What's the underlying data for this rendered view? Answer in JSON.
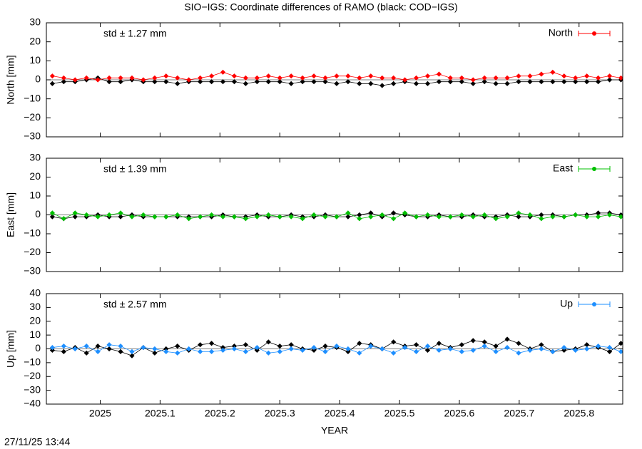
{
  "title": "SIO−IGS: Coordinate differences of RAMO (black: COD−IGS)",
  "timestamp": "27/11/25 13:44",
  "chart_data": [
    {
      "type": "line",
      "ylabel": "North [mm]",
      "annotation": "std ± 1.27 mm",
      "annotation_color": "#ff0000",
      "legend": "upper right",
      "xlim": [
        2024.91,
        2025.873
      ],
      "xticks": [
        2025,
        2025.1,
        2025.2,
        2025.3,
        2025.4,
        2025.5,
        2025.6,
        2025.7,
        2025.8
      ],
      "ylim": [
        -30,
        30
      ],
      "yticks": [
        {
          "value": -30,
          "label": "−30"
        },
        {
          "value": -20,
          "label": "−20"
        },
        {
          "value": -10,
          "label": "−10"
        },
        0,
        10,
        20,
        30
      ],
      "x": [
        2024.92,
        2024.939,
        2024.958,
        2024.977,
        2024.996,
        2025.015,
        2025.034,
        2025.053,
        2025.072,
        2025.091,
        2025.11,
        2025.129,
        2025.148,
        2025.167,
        2025.186,
        2025.205,
        2025.224,
        2025.243,
        2025.262,
        2025.281,
        2025.3,
        2025.319,
        2025.338,
        2025.357,
        2025.376,
        2025.395,
        2025.414,
        2025.433,
        2025.452,
        2025.471,
        2025.49,
        2025.509,
        2025.528,
        2025.547,
        2025.566,
        2025.585,
        2025.604,
        2025.623,
        2025.642,
        2025.661,
        2025.68,
        2025.699,
        2025.718,
        2025.737,
        2025.756,
        2025.775,
        2025.794,
        2025.813,
        2025.832,
        2025.851,
        2025.87
      ],
      "series": [
        {
          "color": "#000000",
          "values": [
            -2,
            -1,
            -1,
            0,
            1,
            -1,
            -1,
            0,
            -1,
            -1,
            -1,
            -2,
            -1,
            -1,
            -1,
            -1,
            -1,
            -2,
            -1,
            -1,
            -1,
            -2,
            -1,
            -1,
            -1,
            -2,
            -1,
            -2,
            -2,
            -3,
            -2,
            -1,
            -2,
            -2,
            -1,
            -1,
            -1,
            -2,
            -1,
            -2,
            -2,
            -1,
            -1,
            -1,
            -1,
            -1,
            -1,
            -1,
            -1,
            0,
            0
          ]
        },
        {
          "name": "North",
          "color": "#ff0000",
          "values": [
            2,
            1,
            0,
            1,
            0,
            1,
            1,
            1,
            0,
            1,
            2,
            1,
            0,
            1,
            2,
            4,
            2,
            1,
            1,
            2,
            1,
            2,
            1,
            2,
            1,
            2,
            2,
            1,
            2,
            1,
            1,
            0,
            1,
            2,
            3,
            1,
            1,
            0,
            1,
            1,
            1,
            2,
            2,
            3,
            4,
            2,
            1,
            2,
            1,
            2,
            1
          ]
        }
      ]
    },
    {
      "type": "line",
      "ylabel": "East [mm]",
      "annotation": "std ± 1.39 mm",
      "annotation_color": "#00c000",
      "legend": "upper right",
      "xlim": [
        2024.91,
        2025.873
      ],
      "xticks": [
        2025,
        2025.1,
        2025.2,
        2025.3,
        2025.4,
        2025.5,
        2025.6,
        2025.7,
        2025.8
      ],
      "ylim": [
        -30,
        30
      ],
      "yticks": [
        {
          "value": -30,
          "label": "−30"
        },
        {
          "value": -20,
          "label": "−20"
        },
        {
          "value": -10,
          "label": "−10"
        },
        0,
        10,
        20,
        30
      ],
      "x": [
        2024.92,
        2024.939,
        2024.958,
        2024.977,
        2024.996,
        2025.015,
        2025.034,
        2025.053,
        2025.072,
        2025.091,
        2025.11,
        2025.129,
        2025.148,
        2025.167,
        2025.186,
        2025.205,
        2025.224,
        2025.243,
        2025.262,
        2025.281,
        2025.3,
        2025.319,
        2025.338,
        2025.357,
        2025.376,
        2025.395,
        2025.414,
        2025.433,
        2025.452,
        2025.471,
        2025.49,
        2025.509,
        2025.528,
        2025.547,
        2025.566,
        2025.585,
        2025.604,
        2025.623,
        2025.642,
        2025.661,
        2025.68,
        2025.699,
        2025.718,
        2025.737,
        2025.756,
        2025.775,
        2025.794,
        2025.813,
        2025.832,
        2025.851,
        2025.87
      ],
      "series": [
        {
          "color": "#000000",
          "values": [
            -1,
            -2,
            -1,
            -1,
            0,
            -1,
            -1,
            0,
            -1,
            -1,
            -1,
            -1,
            -1,
            -1,
            -1,
            0,
            -1,
            -1,
            0,
            -1,
            -1,
            0,
            -1,
            -1,
            0,
            -1,
            -1,
            0,
            1,
            -1,
            1,
            0,
            -1,
            -1,
            0,
            -1,
            -1,
            0,
            -1,
            -1,
            0,
            -1,
            -1,
            0,
            0,
            -1,
            0,
            0,
            1,
            1,
            0
          ]
        },
        {
          "name": "East",
          "color": "#00c000",
          "values": [
            1,
            -2,
            1,
            0,
            -1,
            0,
            1,
            -1,
            0,
            -1,
            -1,
            0,
            -2,
            -1,
            0,
            -1,
            -1,
            -2,
            -1,
            0,
            -1,
            -1,
            -2,
            0,
            -1,
            -1,
            1,
            -2,
            -1,
            0,
            -2,
            1,
            -1,
            0,
            -1,
            -1,
            0,
            -1,
            0,
            -2,
            -1,
            1,
            0,
            -2,
            -1,
            -1,
            0,
            -1,
            -1,
            0,
            -1
          ]
        }
      ]
    },
    {
      "type": "line",
      "ylabel": "Up [mm]",
      "xlabel": "YEAR",
      "annotation": "std ± 2.57 mm",
      "annotation_color": "#1e8fff",
      "legend": "upper right",
      "xlim": [
        2024.91,
        2025.873
      ],
      "xticks": [
        2025,
        2025.1,
        2025.2,
        2025.3,
        2025.4,
        2025.5,
        2025.6,
        2025.7,
        2025.8
      ],
      "ylim": [
        -40,
        40
      ],
      "yticks": [
        {
          "value": -40,
          "label": "−40"
        },
        {
          "value": -30,
          "label": "−30"
        },
        {
          "value": -20,
          "label": "−20"
        },
        {
          "value": -10,
          "label": "−10"
        },
        0,
        10,
        20,
        30,
        40
      ],
      "x": [
        2024.92,
        2024.939,
        2024.958,
        2024.977,
        2024.996,
        2025.015,
        2025.034,
        2025.053,
        2025.072,
        2025.091,
        2025.11,
        2025.129,
        2025.148,
        2025.167,
        2025.186,
        2025.205,
        2025.224,
        2025.243,
        2025.262,
        2025.281,
        2025.3,
        2025.319,
        2025.338,
        2025.357,
        2025.376,
        2025.395,
        2025.414,
        2025.433,
        2025.452,
        2025.471,
        2025.49,
        2025.509,
        2025.528,
        2025.547,
        2025.566,
        2025.585,
        2025.604,
        2025.623,
        2025.642,
        2025.661,
        2025.68,
        2025.699,
        2025.718,
        2025.737,
        2025.756,
        2025.775,
        2025.794,
        2025.813,
        2025.832,
        2025.851,
        2025.87
      ],
      "series": [
        {
          "color": "#000000",
          "values": [
            -1,
            -2,
            1,
            -3,
            2,
            0,
            -2,
            -5,
            1,
            -3,
            0,
            2,
            -1,
            3,
            4,
            1,
            2,
            3,
            -1,
            5,
            2,
            3,
            0,
            -1,
            2,
            1,
            -2,
            4,
            3,
            0,
            5,
            2,
            3,
            -1,
            4,
            1,
            3,
            6,
            5,
            2,
            7,
            4,
            0,
            3,
            -2,
            -1,
            0,
            3,
            1,
            -2,
            4
          ]
        },
        {
          "name": "Up",
          "color": "#1e8fff",
          "values": [
            1,
            2,
            0,
            2,
            -2,
            3,
            2,
            -2,
            1,
            0,
            -2,
            -3,
            0,
            -2,
            -2,
            -1,
            0,
            -2,
            1,
            -3,
            -2,
            0,
            -1,
            1,
            -2,
            2,
            0,
            -3,
            2,
            0,
            -3,
            1,
            -2,
            2,
            -1,
            0,
            -2,
            -1,
            2,
            -2,
            1,
            -3,
            -1,
            0,
            -2,
            1,
            -1,
            0,
            2,
            1,
            -2
          ]
        }
      ]
    }
  ]
}
